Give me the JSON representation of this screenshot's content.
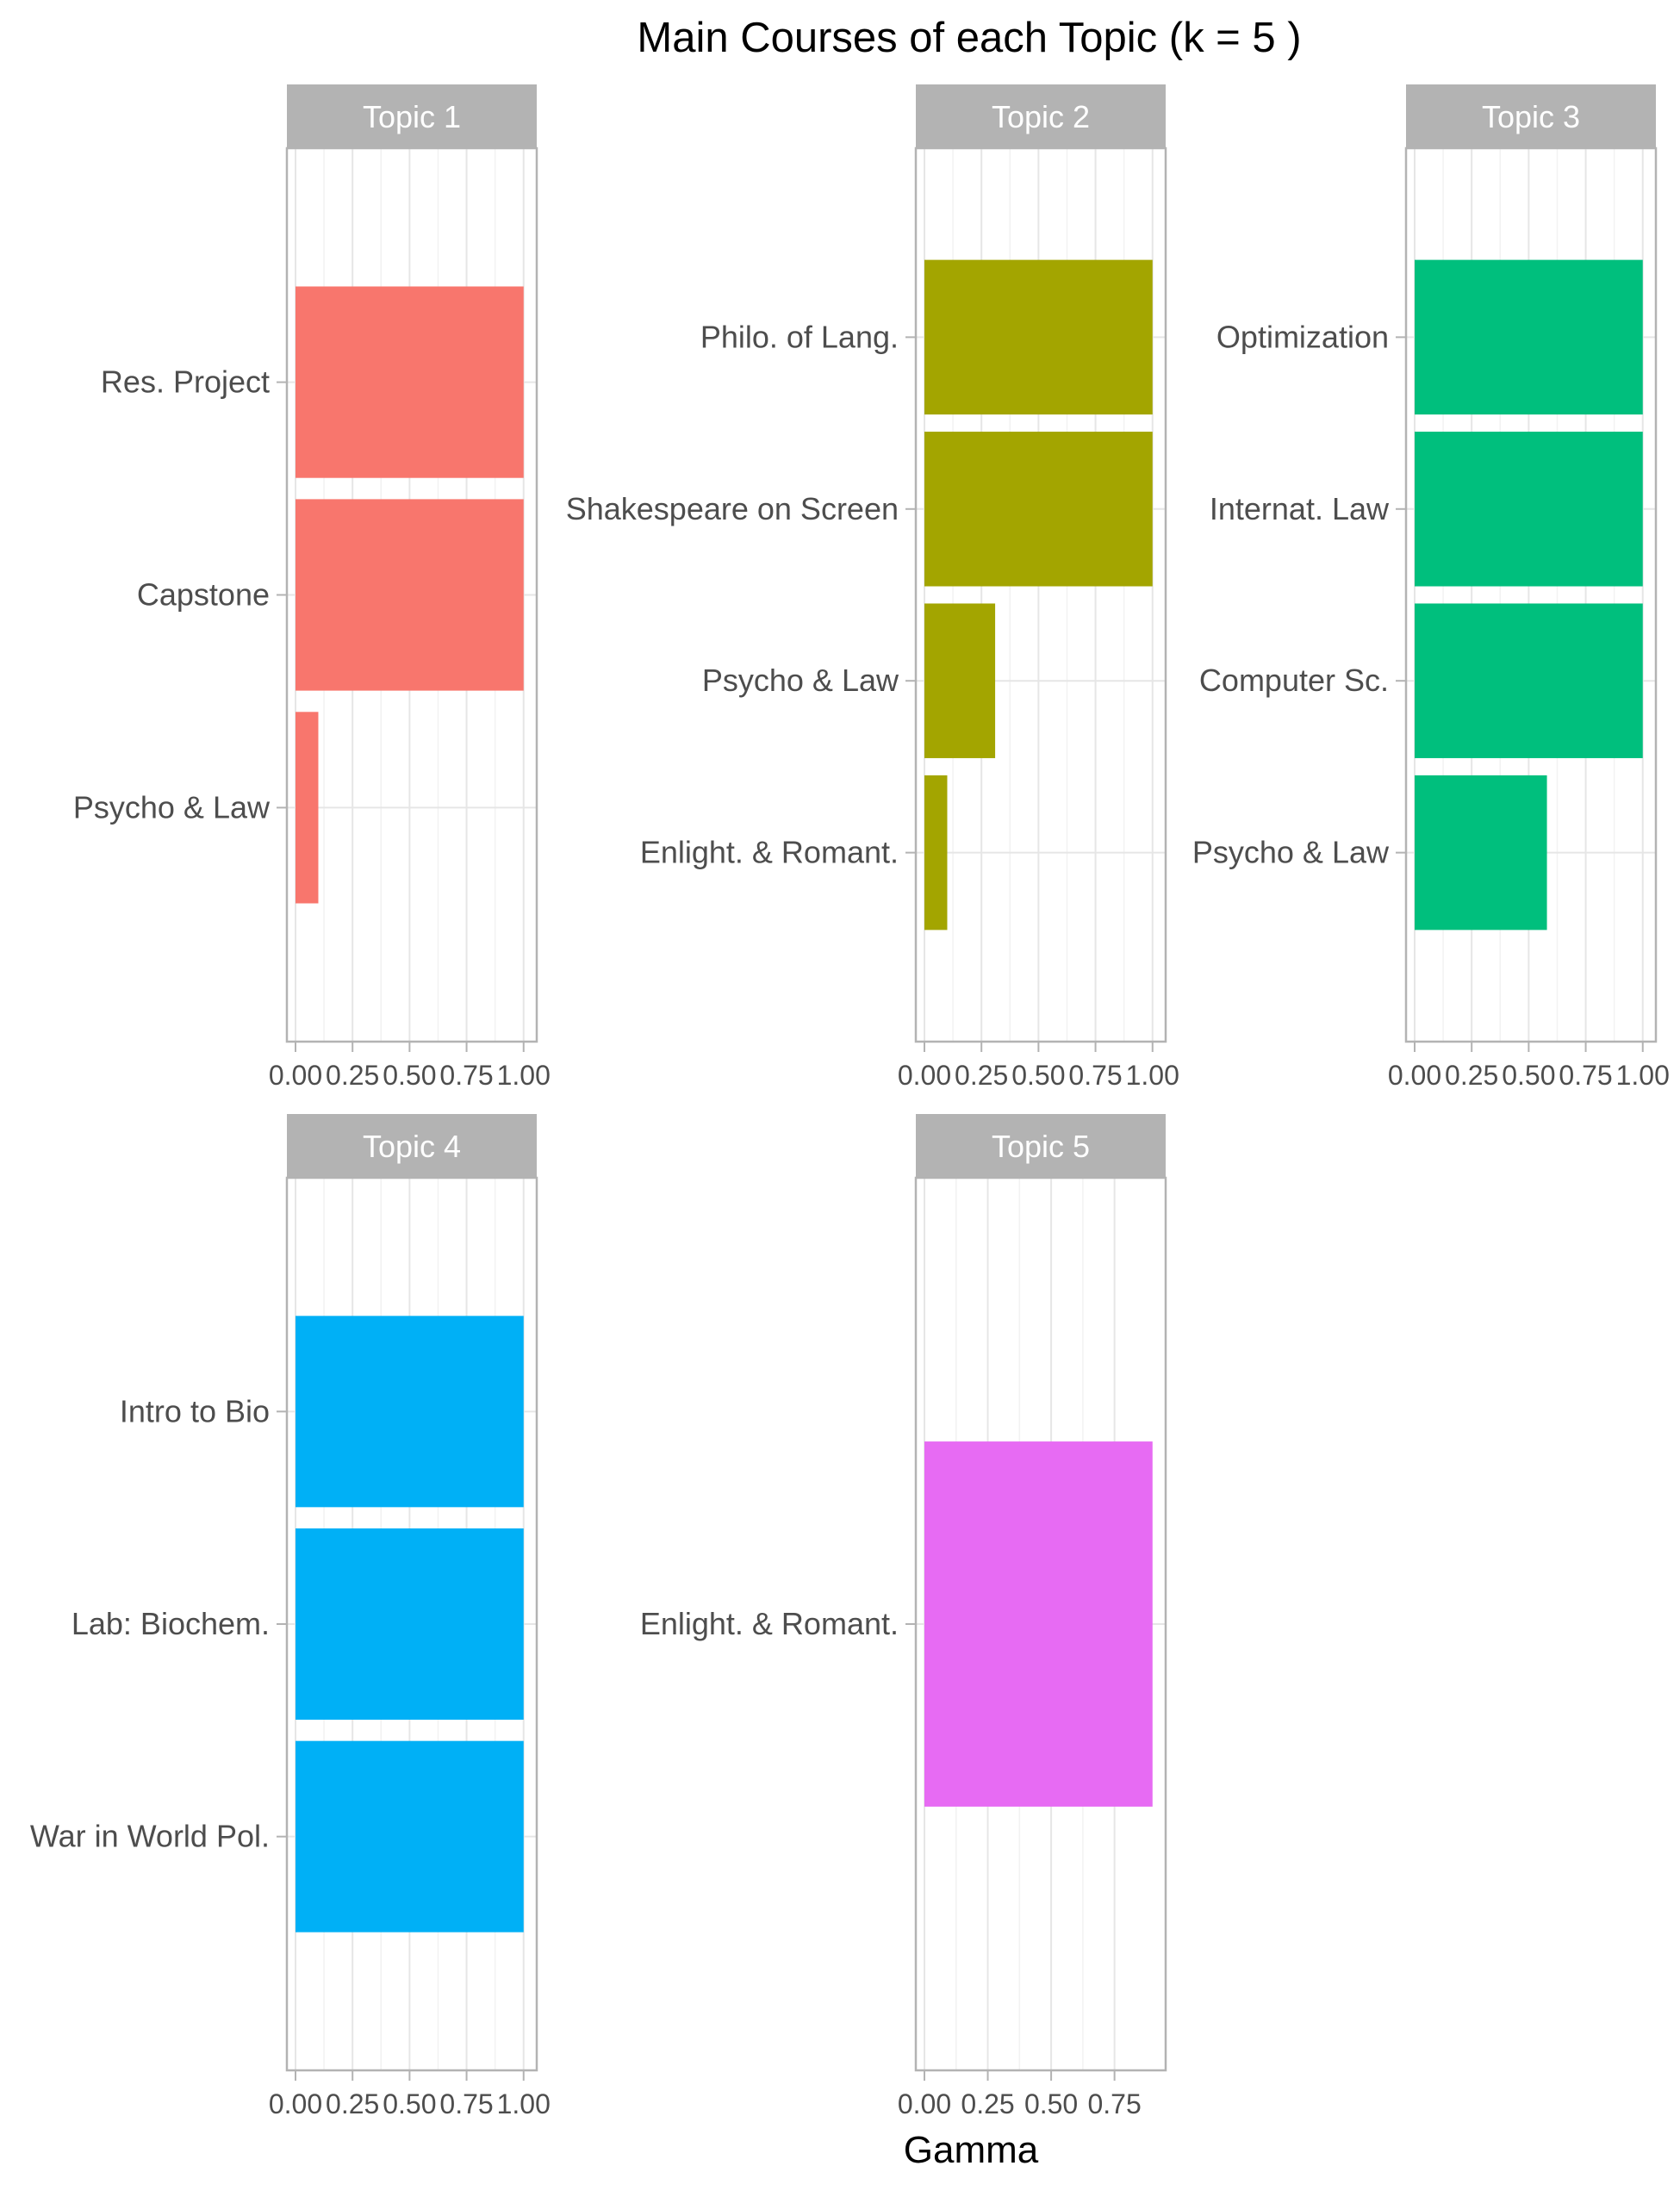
{
  "chart_data": {
    "type": "bar",
    "orientation": "horizontal",
    "title": "Main Courses of each Topic (k = 5 )",
    "xlabel": "Gamma",
    "ylabel": "",
    "grid": true,
    "legend": "none",
    "panels": [
      {
        "strip": "Topic 1",
        "color": "#F8766D",
        "xlim": [
          0,
          1.05
        ],
        "xticks": [
          "0.00",
          "0.25",
          "0.50",
          "0.75",
          "1.00"
        ],
        "xtick_values": [
          0,
          0.25,
          0.5,
          0.75,
          1.0
        ],
        "categories": [
          "Res. Project",
          "Capstone",
          "Psycho & Law"
        ],
        "values": [
          1.0,
          1.0,
          0.1
        ]
      },
      {
        "strip": "Topic 2",
        "color": "#A3A500",
        "xlim": [
          0,
          1.05
        ],
        "xticks": [
          "0.00",
          "0.25",
          "0.50",
          "0.75",
          "1.00"
        ],
        "xtick_values": [
          0,
          0.25,
          0.5,
          0.75,
          1.0
        ],
        "categories": [
          "Philo. of Lang.",
          "Shakespeare on Screen",
          "Psycho & Law",
          "Enlight. & Romant."
        ],
        "values": [
          1.0,
          1.0,
          0.31,
          0.1
        ]
      },
      {
        "strip": "Topic 3",
        "color": "#00BF7D",
        "xlim": [
          0,
          1.05
        ],
        "xticks": [
          "0.00",
          "0.25",
          "0.50",
          "0.75",
          "1.00"
        ],
        "xtick_values": [
          0,
          0.25,
          0.5,
          0.75,
          1.0
        ],
        "categories": [
          "Optimization",
          "Internat. Law",
          "Computer Sc.",
          "Psycho & Law"
        ],
        "values": [
          1.0,
          1.0,
          1.0,
          0.58
        ]
      },
      {
        "strip": "Topic 4",
        "color": "#00B0F6",
        "xlim": [
          0,
          1.05
        ],
        "xticks": [
          "0.00",
          "0.25",
          "0.50",
          "0.75",
          "1.00"
        ],
        "xtick_values": [
          0,
          0.25,
          0.5,
          0.75,
          1.0
        ],
        "categories": [
          "Intro to Bio",
          "Lab: Biochem.",
          "War in World Pol."
        ],
        "values": [
          1.0,
          1.0,
          1.0
        ]
      },
      {
        "strip": "Topic 5",
        "color": "#E76BF3",
        "xlim": [
          0,
          0.945
        ],
        "xticks": [
          "0.00",
          "0.25",
          "0.50",
          "0.75"
        ],
        "xtick_values": [
          0,
          0.25,
          0.5,
          0.75
        ],
        "categories": [
          "Enlight. & Romant."
        ],
        "values": [
          0.9
        ]
      }
    ]
  }
}
